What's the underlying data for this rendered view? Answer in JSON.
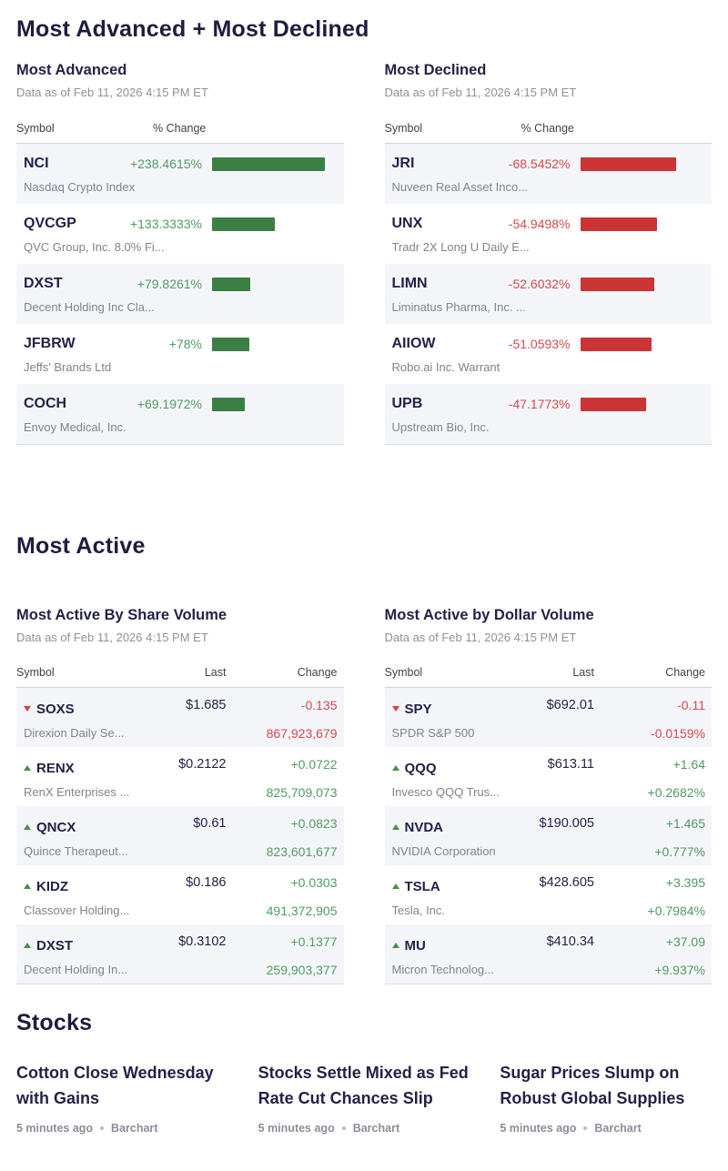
{
  "advanced_declined": {
    "title": "Most Advanced + Most Declined",
    "tables": [
      {
        "title": "Most Advanced",
        "asof": "Data as of Feb 11, 2026 4:15 PM ET",
        "col_symbol": "Symbol",
        "col_change": "% Change",
        "direction": "up",
        "rows": [
          {
            "symbol": "NCI",
            "name": "Nasdaq Crypto Index",
            "pct_label": "+238.4615%",
            "pct_value": 238.4615
          },
          {
            "symbol": "QVCGP",
            "name": "QVC Group, Inc. 8.0% Fi...",
            "pct_label": "+133.3333%",
            "pct_value": 133.3333
          },
          {
            "symbol": "DXST",
            "name": "Decent Holding Inc Cla...",
            "pct_label": "+79.8261%",
            "pct_value": 79.8261
          },
          {
            "symbol": "JFBRW",
            "name": "Jeffs' Brands Ltd",
            "pct_label": "+78%",
            "pct_value": 78
          },
          {
            "symbol": "COCH",
            "name": "Envoy Medical, Inc.",
            "pct_label": "+69.1972%",
            "pct_value": 69.1972
          }
        ]
      },
      {
        "title": "Most Declined",
        "asof": "Data as of Feb 11, 2026 4:15 PM ET",
        "col_symbol": "Symbol",
        "col_change": "% Change",
        "direction": "down",
        "rows": [
          {
            "symbol": "JRI",
            "name": "Nuveen Real Asset Inco...",
            "pct_label": "-68.5452%",
            "pct_value": -68.5452
          },
          {
            "symbol": "UNX",
            "name": "Tradr 2X Long U Daily E...",
            "pct_label": "-54.9498%",
            "pct_value": -54.9498
          },
          {
            "symbol": "LIMN",
            "name": "Liminatus Pharma, Inc. ...",
            "pct_label": "-52.6032%",
            "pct_value": -52.6032
          },
          {
            "symbol": "AIIOW",
            "name": "Robo.ai Inc. Warrant",
            "pct_label": "-51.0593%",
            "pct_value": -51.0593
          },
          {
            "symbol": "UPB",
            "name": "Upstream Bio, Inc.",
            "pct_label": "-47.1773%",
            "pct_value": -47.1773
          }
        ]
      }
    ]
  },
  "most_active": {
    "title": "Most Active",
    "tables": [
      {
        "title": "Most Active By Share Volume",
        "asof": "Data as of Feb 11, 2026 4:15 PM ET",
        "col_symbol": "Symbol",
        "col_last": "Last",
        "col_change": "Change",
        "rows": [
          {
            "symbol": "SOXS",
            "name": "Direxion Daily Se...",
            "dir": "down",
            "last": "$1.685",
            "change": "-0.135",
            "secondary": "867,923,679"
          },
          {
            "symbol": "RENX",
            "name": "RenX Enterprises ...",
            "dir": "up",
            "last": "$0.2122",
            "change": "+0.0722",
            "secondary": "825,709,073"
          },
          {
            "symbol": "QNCX",
            "name": "Quince Therapeut...",
            "dir": "up",
            "last": "$0.61",
            "change": "+0.0823",
            "secondary": "823,601,677"
          },
          {
            "symbol": "KIDZ",
            "name": "Classover Holding...",
            "dir": "up",
            "last": "$0.186",
            "change": "+0.0303",
            "secondary": "491,372,905"
          },
          {
            "symbol": "DXST",
            "name": "Decent Holding In...",
            "dir": "up",
            "last": "$0.3102",
            "change": "+0.1377",
            "secondary": "259,903,377"
          }
        ]
      },
      {
        "title": "Most Active by Dollar Volume",
        "asof": "Data as of Feb 11, 2026 4:15 PM ET",
        "col_symbol": "Symbol",
        "col_last": "Last",
        "col_change": "Change",
        "rows": [
          {
            "symbol": "SPY",
            "name": "SPDR S&P 500",
            "dir": "down",
            "last": "$692.01",
            "change": "-0.11",
            "secondary": "-0.0159%"
          },
          {
            "symbol": "QQQ",
            "name": "Invesco QQQ Trus...",
            "dir": "up",
            "last": "$613.11",
            "change": "+1.64",
            "secondary": "+0.2682%"
          },
          {
            "symbol": "NVDA",
            "name": "NVIDIA Corporation",
            "dir": "up",
            "last": "$190.005",
            "change": "+1.465",
            "secondary": "+0.777%"
          },
          {
            "symbol": "TSLA",
            "name": "Tesla, Inc.",
            "dir": "up",
            "last": "$428.605",
            "change": "+3.395",
            "secondary": "+0.7984%"
          },
          {
            "symbol": "MU",
            "name": "Micron Technolog...",
            "dir": "up",
            "last": "$410.34",
            "change": "+37.09",
            "secondary": "+9.937%"
          }
        ]
      }
    ]
  },
  "news": {
    "title": "Stocks",
    "items": [
      {
        "headline": "Cotton Close Wednesday with Gains",
        "time": "5 minutes ago",
        "source": "Barchart"
      },
      {
        "headline": "Stocks Settle Mixed as Fed Rate Cut Chances Slip",
        "time": "5 minutes ago",
        "source": "Barchart"
      },
      {
        "headline": "Sugar Prices Slump on Robust Global Supplies",
        "time": "5 minutes ago",
        "source": "Barchart"
      }
    ]
  },
  "colors": {
    "up_text": "#4e9c62",
    "up_bar": "#3b7f45",
    "down_text": "#d7494d",
    "down_bar": "#cb3434",
    "heading_navy": "#1e1d3f",
    "row_stripe": "#f4f5f9"
  }
}
